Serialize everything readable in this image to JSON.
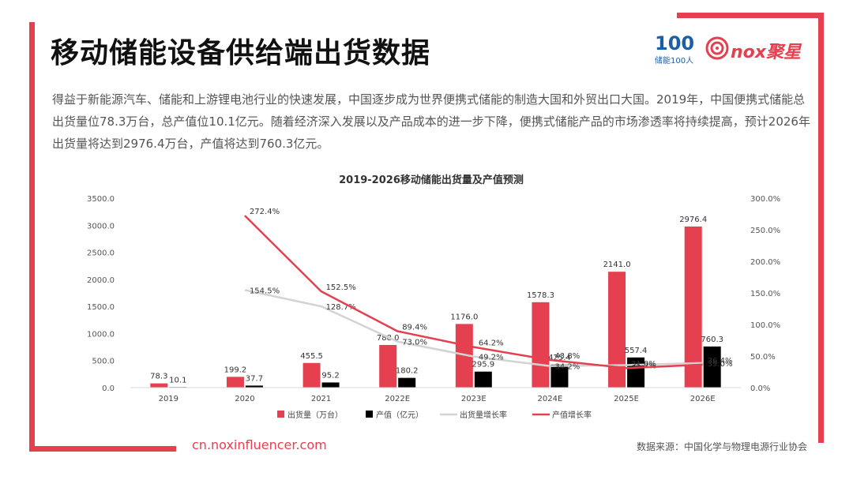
{
  "title": "移动储能设备供给端出货数据",
  "logos": {
    "left_mark": "100",
    "left_sub": "储能100人",
    "right_word": "nox聚星"
  },
  "intro": "得益于新能源汽车、储能和上游锂电池行业的快速发展，中国逐步成为世界便携式储能的制造大国和外贸出口大国。2019年，中国便携式储能总出货量位78.3万台，总产值位10.1亿元。随着经济深入发展以及产品成本的进一步下降，便携式储能产品的市场渗透率将持续提高，预计2026年出货量将达到2976.4万台，产值将达到760.3亿元。",
  "footer": {
    "url": "cn.noxinfluencer.com",
    "source": "数据来源：中国化学与物理电源行业协会"
  },
  "colors": {
    "accent": "#e5404f",
    "shipment_bar": "#e5404f",
    "value_bar": "#000000",
    "shipment_growth": "#d3d3d3",
    "value_growth": "#e5404f"
  },
  "chart_data": {
    "type": "bar",
    "title": "2019-2026移动储能出货量及产值预测",
    "categories": [
      "2019",
      "2020",
      "2021",
      "2022E",
      "2023E",
      "2024E",
      "2025E",
      "2026E"
    ],
    "ylim": [
      0,
      3500
    ],
    "yticks": [
      "0.0",
      "500.0",
      "1000.0",
      "1500.0",
      "2000.0",
      "2500.0",
      "3000.0",
      "3500.0"
    ],
    "y2lim": [
      0,
      300
    ],
    "y2ticks": [
      "0.0%",
      "50.0%",
      "100.0%",
      "150.0%",
      "200.0%",
      "250.0%",
      "300.0%"
    ],
    "series": [
      {
        "name": "出货量（万台）",
        "kind": "bar",
        "axis": "left",
        "values": [
          78.3,
          199.2,
          455.5,
          788.0,
          1176.0,
          1578.3,
          2141.0,
          2976.4
        ],
        "labels": [
          "78.3",
          "199.2",
          "455.5",
          "788.0",
          "1176.0",
          "1578.3",
          "2141.0",
          "2976.4"
        ]
      },
      {
        "name": "产值（亿元）",
        "kind": "bar",
        "axis": "left",
        "values": [
          10.1,
          37.7,
          95.2,
          180.2,
          295.9,
          425.4,
          557.4,
          760.3
        ],
        "labels": [
          "10.1",
          "37.7",
          "95.2",
          "180.2",
          "295.9",
          "425.4",
          "557.4",
          "760.3"
        ]
      },
      {
        "name": "出货量增长率",
        "kind": "line",
        "axis": "right",
        "values": [
          null,
          154.5,
          128.7,
          73.0,
          49.2,
          34.2,
          35.7,
          39.0
        ],
        "labels": [
          "",
          "154.5%",
          "128.7%",
          "73.0%",
          "49.2%",
          "34.2%",
          "35.7%",
          "39.0%"
        ]
      },
      {
        "name": "产值增长率",
        "kind": "line",
        "axis": "right",
        "values": [
          null,
          272.4,
          152.5,
          89.4,
          64.2,
          43.8,
          31.0,
          36.4
        ],
        "labels": [
          "",
          "272.4%",
          "152.5%",
          "89.4%",
          "64.2%",
          "43.8%",
          "31.0%",
          "36.4%"
        ]
      }
    ],
    "legend_position": "bottom",
    "grid": false
  }
}
